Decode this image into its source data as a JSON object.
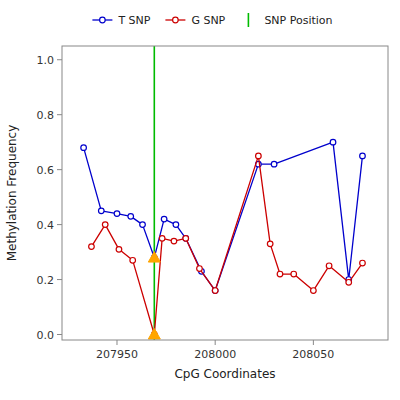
{
  "chart_data": {
    "type": "line",
    "xlabel": "CpG Coordinates",
    "ylabel": "Methylation Frequency",
    "xlim": [
      207922,
      208088
    ],
    "ylim": [
      -0.02,
      1.05
    ],
    "xticks": [
      207950,
      208000,
      208050
    ],
    "yticks": [
      {
        "value": 0.0,
        "label": "0.0"
      },
      0.2,
      0.4,
      0.6,
      0.8,
      {
        "value": 1.0,
        "label": "1.0"
      }
    ],
    "grid": false,
    "legend": "top",
    "series": [
      {
        "name": "T SNP",
        "type": "line",
        "color": "#0000CC",
        "marker": "circle",
        "line_style": "solid",
        "x": [
          207933,
          207942,
          207950,
          207957,
          207963,
          207969,
          207974,
          207980,
          207985,
          207993,
          208000,
          208022,
          208030,
          208060,
          208068,
          208075
        ],
        "values": [
          0.68,
          0.45,
          0.44,
          0.43,
          0.4,
          0.28,
          0.42,
          0.4,
          0.35,
          0.23,
          0.16,
          0.62,
          0.62,
          0.7,
          0.2,
          0.65
        ]
      },
      {
        "name": "G SNP",
        "type": "line",
        "color": "#CC0000",
        "marker": "circle",
        "line_style": "solid",
        "x": [
          207937,
          207944,
          207951,
          207958,
          207969,
          207973,
          207979,
          207985,
          207992,
          208000,
          208022,
          208028,
          208033,
          208040,
          208050,
          208058,
          208068,
          208075
        ],
        "values": [
          0.32,
          0.4,
          0.31,
          0.27,
          0.0,
          0.35,
          0.34,
          0.35,
          0.24,
          0.16,
          0.65,
          0.33,
          0.22,
          0.22,
          0.16,
          0.25,
          0.19,
          0.26
        ]
      },
      {
        "name": "SNP Position",
        "type": "vline",
        "color": "#00BB00",
        "line_style": "solid",
        "x": [
          207969
        ]
      },
      {
        "type": "scatter",
        "color": "#FFA500",
        "marker": "triangle",
        "x": [
          207969,
          207969
        ],
        "values": [
          0.28,
          0.0
        ]
      }
    ]
  }
}
